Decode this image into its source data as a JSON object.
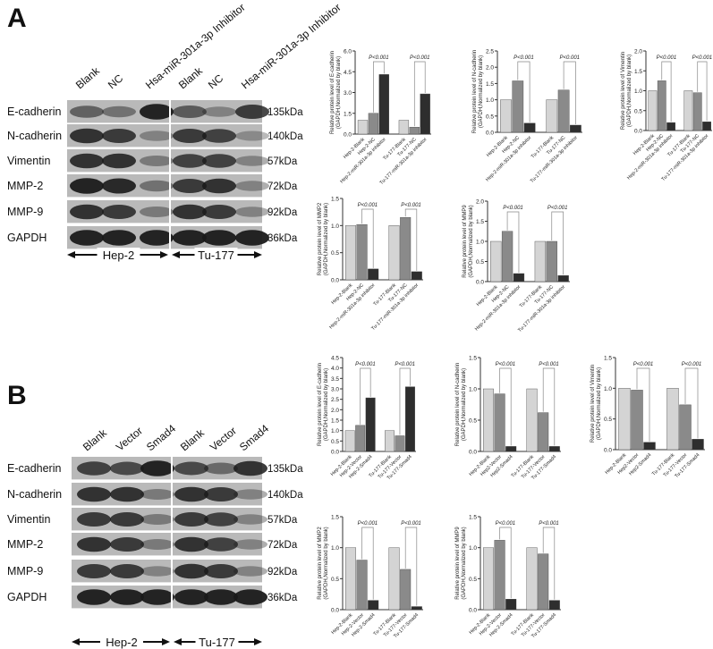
{
  "panels": [
    {
      "label": "A",
      "lane_labels": [
        "Blank",
        "NC",
        "Hsa-miR-301a-3p Inhibitor",
        "Blank",
        "NC",
        "Hsa-miR-301a-3p Inhibitor"
      ],
      "proteins": [
        "E-cadherin",
        "N-cadherin",
        "Vimentin",
        "MMP-2",
        "MMP-9",
        "GAPDH"
      ],
      "sizes": [
        "135kDa",
        "140kDa",
        "57kDa",
        "72kDa",
        "92kDa",
        "36kDa"
      ],
      "cell_lines": [
        "Hep-2",
        "Tu-177"
      ]
    },
    {
      "label": "B",
      "lane_labels": [
        "Blank",
        "Vector",
        "Smad4",
        "Blank",
        "Vector",
        "Smad4"
      ],
      "proteins": [
        "E-cadherin",
        "N-cadherin",
        "Vimentin",
        "MMP-2",
        "MMP-9",
        "GAPDH"
      ],
      "sizes": [
        "135kDa",
        "140kDa",
        "57kDa",
        "72kDa",
        "92kDa",
        "36kDa"
      ],
      "cell_lines": [
        "Hep-2",
        "Tu-177"
      ]
    }
  ],
  "colors": {
    "blank": "#d4d4d4",
    "control": "#8a8a8a",
    "treatment": "#2e2e2e"
  },
  "chart_data": [
    {
      "type": "bar",
      "panel": "A",
      "ylabel": [
        "Relative protein level of E-cadherin",
        "(GAPDH,Normalized by blank)"
      ],
      "ylim": [
        0,
        6
      ],
      "ticks": [
        "0.0",
        "1.5",
        "3.0",
        "4.5",
        "6.0"
      ],
      "categories": [
        "Hep-2-Blank",
        "Hep-2-NC",
        "Hep-2-miR-301a-3p inhibitor",
        "Tu-177-Blank",
        "Tu-177-NC",
        "Tu-177-miR-301a-3p inhibitor"
      ],
      "values": [
        1.0,
        1.5,
        4.3,
        1.0,
        0.5,
        2.9
      ],
      "annotations": [
        "P<0.001",
        "P<0.001"
      ]
    },
    {
      "type": "bar",
      "panel": "A",
      "ylabel": [
        "Relative protein level of N-cadherin",
        "(GAPDH,Normalized by blank)"
      ],
      "ylim": [
        0,
        2.5
      ],
      "ticks": [
        "0.0",
        "0.5",
        "1.0",
        "1.5",
        "2.0",
        "2.5"
      ],
      "categories": [
        "Hep-2-Blank",
        "Hep-2-NC",
        "Hep-2-miR-301a-3p inhibitor",
        "Tu-177-Blank",
        "Tu-177-NC",
        "Tu-177-miR-301a-3p inhibitor"
      ],
      "values": [
        1.0,
        1.58,
        0.28,
        1.0,
        1.3,
        0.22
      ],
      "annotations": [
        "P<0.001",
        "P<0.001"
      ]
    },
    {
      "type": "bar",
      "panel": "A",
      "ylabel": [
        "Relative protein level of Vimentin",
        "(GAPDH,Normalized by blank)"
      ],
      "ylim": [
        0,
        2
      ],
      "ticks": [
        "0.0",
        "0.5",
        "1.0",
        "1.5",
        "2.0"
      ],
      "categories": [
        "Hep-2-Blank",
        "Hep-2-NC",
        "Hep-2-miR-301a-3p inhibitor",
        "Tu-177-Blank",
        "Tu-177-NC",
        "Tu-177-miR-301a-3p inhibitor"
      ],
      "values": [
        1.0,
        1.25,
        0.2,
        1.0,
        0.95,
        0.22
      ],
      "annotations": [
        "P<0.001",
        "P<0.001"
      ]
    },
    {
      "type": "bar",
      "panel": "A",
      "ylabel": [
        "Relative protein level of MMP2",
        "(GAPDH,Normalized by blank)"
      ],
      "ylim": [
        0,
        1.5
      ],
      "ticks": [
        "0.0",
        "0.5",
        "1.0",
        "1.5"
      ],
      "categories": [
        "Hep-2-Blank",
        "Hep-2-NC",
        "Hep-2-miR-301a-3p inhibitor",
        "Tu-177-Blank",
        "Tu-177-NC",
        "Tu-177-miR-301a-3p inhibitor"
      ],
      "values": [
        1.0,
        1.02,
        0.2,
        1.0,
        1.15,
        0.15
      ],
      "annotations": [
        "P<0.001",
        "P<0.001"
      ]
    },
    {
      "type": "bar",
      "panel": "A",
      "ylabel": [
        "Relative protein level of MMP9",
        "(GAPDH,Normalized by blank)"
      ],
      "ylim": [
        0,
        2
      ],
      "ticks": [
        "0.0",
        "0.5",
        "1.0",
        "1.5",
        "2.0"
      ],
      "categories": [
        "Hep-2-Blank",
        "Hep-2-NC",
        "Hep-2-miR-301a-3p inhibitor",
        "Tu-177-Blank",
        "Tu-177-NC",
        "Tu-177-miR-301a-3p inhibitor"
      ],
      "values": [
        1.0,
        1.25,
        0.2,
        1.0,
        1.0,
        0.15
      ],
      "annotations": [
        "P<0.001",
        "P<0.001"
      ]
    },
    {
      "type": "bar",
      "panel": "B",
      "ylabel": [
        "Relative protein level of E-cadherin",
        "(GAPDH,Normalized by blank)"
      ],
      "ylim": [
        0,
        4.5
      ],
      "ticks": [
        "0.0",
        "0.5",
        "1.0",
        "1.5",
        "2.0",
        "2.5",
        "3.0",
        "3.5",
        "4.0",
        "4.5"
      ],
      "categories": [
        "Hep-2-Blank",
        "Hep-2-Vector",
        "Hep-2-Smad4",
        "Tu-177-Blank",
        "Tu-177-Vector",
        "Tu-177-Smad4"
      ],
      "values": [
        1.0,
        1.25,
        2.57,
        1.0,
        0.75,
        3.1
      ],
      "annotations": [
        "P<0.001",
        "P<0.001"
      ]
    },
    {
      "type": "bar",
      "panel": "B",
      "ylabel": [
        "Relative protein level of N-cadherin",
        "(GAPDH,Normalized by blank)"
      ],
      "ylim": [
        0,
        1.5
      ],
      "ticks": [
        "0.0",
        "0.5",
        "1.0",
        "1.5"
      ],
      "categories": [
        "Hep-2-Blank",
        "Hep2-Vector",
        "Hep2-Smad4",
        "Tu-177-Blank",
        "Tu-177-Vector",
        "Tu-177-Smad4"
      ],
      "values": [
        1.0,
        0.92,
        0.08,
        1.0,
        0.62,
        0.08
      ],
      "annotations": [
        "P<0.001",
        "P<0.001"
      ]
    },
    {
      "type": "bar",
      "panel": "B",
      "ylabel": [
        "Relative protein level of Vimentin",
        "(GAPDH,Normalized by blank)"
      ],
      "ylim": [
        0,
        1.5
      ],
      "ticks": [
        "0.0",
        "0.5",
        "1.0",
        "1.5"
      ],
      "categories": [
        "Hep-2-Blank",
        "Hep2-Vector",
        "Hep2-Smad4",
        "Tu-177-Blank",
        "Tu-177-Vector",
        "Tu-177-Smad4"
      ],
      "values": [
        1.0,
        0.97,
        0.12,
        1.0,
        0.73,
        0.17
      ],
      "annotations": [
        "P<0.001",
        "P<0.001"
      ]
    },
    {
      "type": "bar",
      "panel": "B",
      "ylabel": [
        "Relative protein level of MMP2",
        "(GAPDH,Normalized by blank)"
      ],
      "ylim": [
        0,
        1.5
      ],
      "ticks": [
        "0.0",
        "0.5",
        "1.0",
        "1.5"
      ],
      "categories": [
        "Hep-2-Blank",
        "Hep-2-Vector",
        "Hep-2-Smad4",
        "Tu-177-Blank",
        "Tu-177-Vector",
        "Tu-177-Smad4"
      ],
      "values": [
        1.0,
        0.8,
        0.15,
        1.0,
        0.65,
        0.05
      ],
      "annotations": [
        "P<0.001",
        "P<0.001"
      ]
    },
    {
      "type": "bar",
      "panel": "B",
      "ylabel": [
        "Relative protein level of MMP9",
        "(GAPDH,Normalized by blank)"
      ],
      "ylim": [
        0,
        1.5
      ],
      "ticks": [
        "0.0",
        "0.5",
        "1.0",
        "1.5"
      ],
      "categories": [
        "Hep-2-Blank",
        "Hep-2-Vector",
        "Hep-2-Smad4",
        "Tu-177-Blank",
        "Tu-177-Vector",
        "Tu-177-Smad4"
      ],
      "values": [
        1.0,
        1.12,
        0.17,
        1.0,
        0.9,
        0.15
      ],
      "annotations": [
        "P<0.001",
        "P<0.001"
      ]
    }
  ]
}
